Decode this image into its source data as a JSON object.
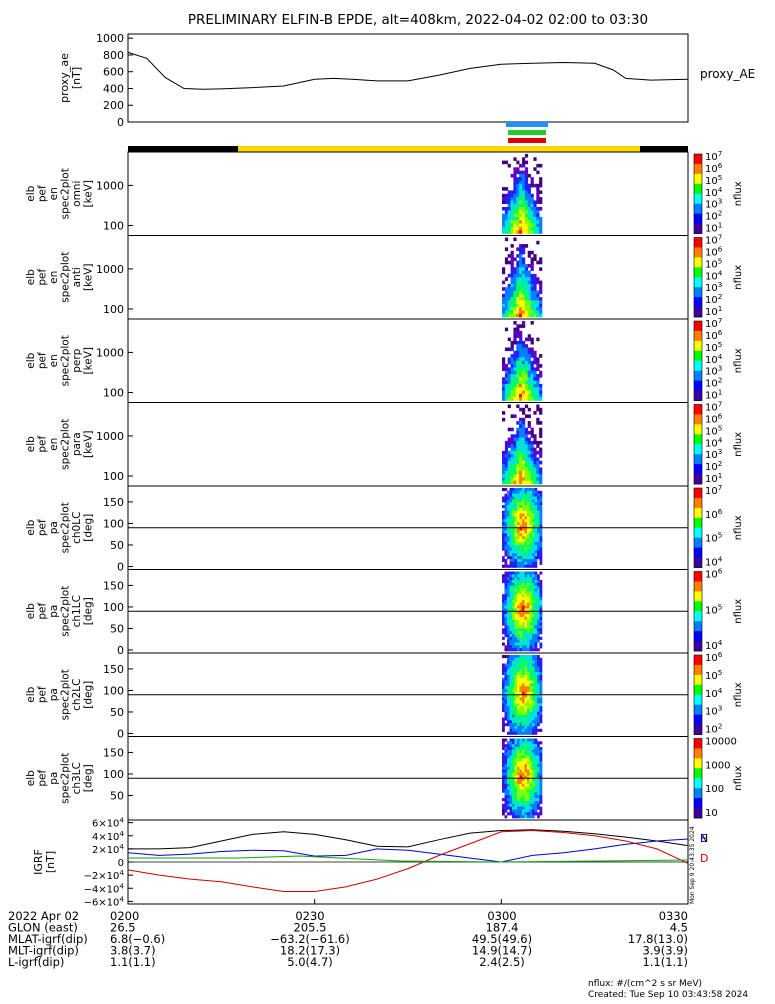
{
  "title": "PRELIMINARY ELFIN-B EPDE, alt=408km, 2022-04-02 02:00 to 03:30",
  "colors": {
    "gold": "#ffd700",
    "black": "#000000",
    "blue_bar": "#1e90ff",
    "green_bar": "#22cc22",
    "red_bar": "#dd0000",
    "ae_line": "#000000",
    "igrf_n": "#000000",
    "igrf_e": "#0000cc",
    "igrf_d": "#cc0000",
    "igrf_g": "#00aa00"
  },
  "ae_panel": {
    "ylabel_lines": [
      "proxy_ae",
      "[nT]"
    ],
    "legend": "proxy_AE",
    "yticks": [
      "1000",
      "800",
      "600",
      "400",
      "200",
      "0"
    ]
  },
  "spectrograms": [
    {
      "label_lines": [
        "elb",
        "pef",
        "en",
        "spec2plot",
        "omni",
        "[keV]"
      ],
      "yticks": [
        "1000",
        "100"
      ],
      "zticks": [
        "10^7",
        "10^6",
        "10^5",
        "10^4",
        "10^3",
        "10^2",
        "10^1"
      ],
      "zlabel": "nflux"
    },
    {
      "label_lines": [
        "elb",
        "pef",
        "en",
        "spec2plot",
        "anti",
        "[keV]"
      ],
      "yticks": [
        "1000",
        "100"
      ],
      "zticks": [
        "10^7",
        "10^6",
        "10^5",
        "10^4",
        "10^3",
        "10^2",
        "10^1"
      ],
      "zlabel": "nflux"
    },
    {
      "label_lines": [
        "elb",
        "pef",
        "en",
        "spec2plot",
        "perp",
        "[keV]"
      ],
      "yticks": [
        "1000",
        "100"
      ],
      "zticks": [
        "10^7",
        "10^6",
        "10^5",
        "10^4",
        "10^3",
        "10^2",
        "10^1"
      ],
      "zlabel": "nflux"
    },
    {
      "label_lines": [
        "elb",
        "pef",
        "en",
        "spec2plot",
        "para",
        "[keV]"
      ],
      "yticks": [
        "1000",
        "100"
      ],
      "zticks": [
        "10^7",
        "10^6",
        "10^5",
        "10^4",
        "10^3",
        "10^2",
        "10^1"
      ],
      "zlabel": "nflux"
    },
    {
      "label_lines": [
        "elb",
        "pef",
        "pa",
        "spec2plot",
        "ch0LC",
        "[deg]"
      ],
      "yticks": [
        "150",
        "100",
        "50",
        "0"
      ],
      "zticks": [
        "10^7",
        "10^6",
        "10^5",
        "10^4"
      ],
      "zlabel": "nflux"
    },
    {
      "label_lines": [
        "elb",
        "pef",
        "pa",
        "spec2plot",
        "ch1LC",
        "[deg]"
      ],
      "yticks": [
        "150",
        "100",
        "50",
        "0"
      ],
      "zticks": [
        "10^6",
        "10^5",
        "10^4"
      ],
      "zlabel": "nflux"
    },
    {
      "label_lines": [
        "elb",
        "pef",
        "pa",
        "spec2plot",
        "ch2LC",
        "[deg]"
      ],
      "yticks": [
        "150",
        "100",
        "50",
        "0"
      ],
      "zticks": [
        "10^6",
        "10^5",
        "10^4",
        "10^3",
        "10^2"
      ],
      "zlabel": "nflux"
    },
    {
      "label_lines": [
        "elb",
        "pef",
        "pa",
        "spec2plot",
        "ch3LC",
        "[deg]"
      ],
      "yticks": [
        "150",
        "100",
        "50"
      ],
      "zticks": [
        "10000",
        "1000",
        "100",
        "10"
      ],
      "zlabel": "nflux"
    }
  ],
  "igrf_panel": {
    "ylabel_lines": [
      "IGRF",
      "[nT]"
    ],
    "yticks": [
      "6×10^4",
      "4×10^4",
      "2×10^4",
      "0",
      "−2×10^4",
      "−4×10^4",
      "−6×10^4"
    ],
    "legend": [
      "N",
      "E",
      "D"
    ],
    "side_text": "Mon Sep 9 20:43:35 2024"
  },
  "orbit_table": {
    "rows": [
      {
        "label": "2022 Apr 02",
        "values": [
          "0200",
          "0230",
          "0300",
          "0330"
        ]
      },
      {
        "label": "GLON (east)",
        "values": [
          "26.5",
          "205.5",
          "187.4",
          "4.5"
        ]
      },
      {
        "label": "MLAT-igrf(dip)",
        "values": [
          "6.8(−0.6)",
          "−63.2(−61.6)",
          "49.5(49.6)",
          "17.8(13.0)"
        ]
      },
      {
        "label": "MLT-igrf(dip)",
        "values": [
          "3.8(3.7)",
          "18.2(17.3)",
          "14.9(14.7)",
          "3.9(3.9)"
        ]
      },
      {
        "label": "L-igrf(dip)",
        "values": [
          "1.1(1.1)",
          "5.0(4.7)",
          "2.4(2.5)",
          "1.1(1.1)"
        ]
      }
    ]
  },
  "footer": {
    "line1": "nflux: #/(cm^2 s sr MeV)",
    "line2": "Created: Tue Sep 10 03:43:58 2024"
  },
  "chart_data": [
    {
      "type": "line",
      "title": "PRELIMINARY ELFIN-B EPDE, alt=408km, 2022-04-02 02:00 to 03:30",
      "ylabel": "proxy_ae [nT]",
      "ylim": [
        0,
        1050
      ],
      "x_minutes": [
        0,
        3,
        6,
        9,
        12,
        15,
        20,
        25,
        30,
        33,
        36,
        40,
        45,
        50,
        55,
        60,
        65,
        70,
        75,
        78,
        80,
        84,
        90
      ],
      "series": [
        {
          "name": "proxy_AE",
          "values": [
            830,
            760,
            530,
            400,
            390,
            395,
            410,
            430,
            510,
            520,
            510,
            490,
            490,
            560,
            640,
            690,
            700,
            710,
            700,
            620,
            520,
            500,
            510
          ]
        }
      ]
    },
    {
      "type": "line",
      "ylabel": "IGRF [nT]",
      "ylim": [
        -60000,
        60000
      ],
      "x_minutes": [
        0,
        5,
        10,
        15,
        20,
        25,
        30,
        35,
        40,
        45,
        50,
        55,
        60,
        65,
        70,
        75,
        80,
        85,
        90
      ],
      "series": [
        {
          "name": "N",
          "values": [
            20000,
            20000,
            22000,
            32000,
            42000,
            46000,
            42000,
            34000,
            24000,
            23000,
            34000,
            44000,
            48000,
            49000,
            47000,
            43000,
            38000,
            32000,
            25000
          ]
        },
        {
          "name": "E",
          "values": [
            14000,
            10000,
            12000,
            16000,
            18000,
            17000,
            9000,
            10000,
            20000,
            18000,
            12000,
            6000,
            0,
            10000,
            14000,
            20000,
            27000,
            32000,
            35000
          ]
        },
        {
          "name": "D",
          "values": [
            -12000,
            -20000,
            -26000,
            -30000,
            -38000,
            -45000,
            -45000,
            -38000,
            -26000,
            -10000,
            10000,
            28000,
            46000,
            48000,
            45000,
            40000,
            32000,
            20000,
            -2000
          ]
        }
      ]
    }
  ]
}
